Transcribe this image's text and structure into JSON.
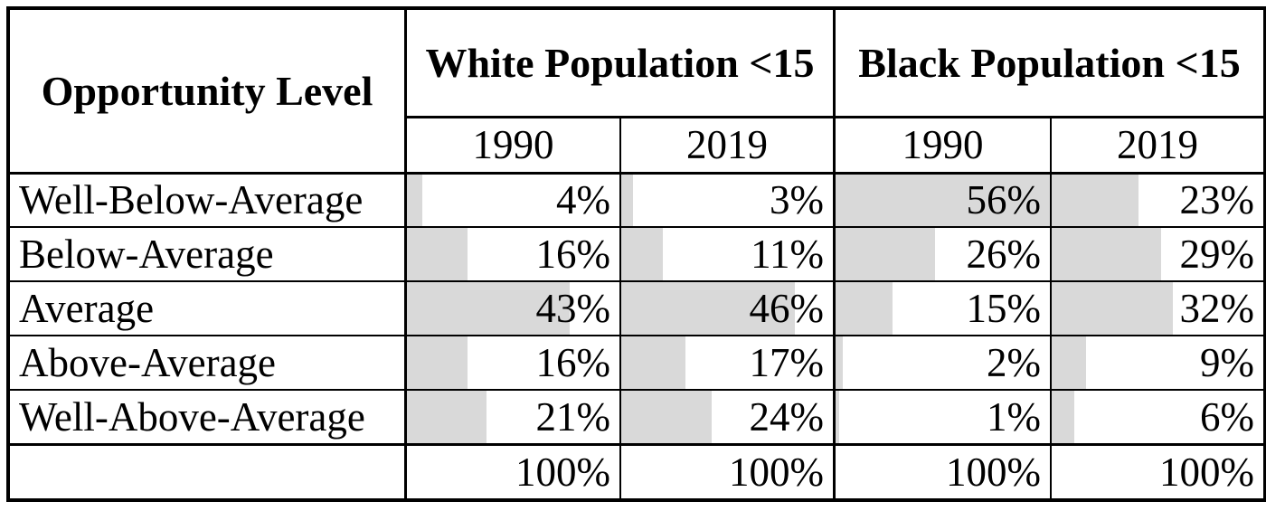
{
  "table": {
    "corner_header": "Opportunity Level",
    "groups": [
      {
        "label": "White Population <15",
        "years": [
          "1990",
          "2019"
        ]
      },
      {
        "label": "Black Population <15",
        "years": [
          "1990",
          "2019"
        ]
      }
    ],
    "bar_scale_max": 56,
    "rows": [
      {
        "label": "Well-Below-Average",
        "values": [
          4,
          3,
          56,
          23
        ],
        "display": [
          "4%",
          "3%",
          "56%",
          "23%"
        ]
      },
      {
        "label": "Below-Average",
        "values": [
          16,
          11,
          26,
          29
        ],
        "display": [
          "16%",
          "11%",
          "26%",
          "29%"
        ]
      },
      {
        "label": "Average",
        "values": [
          43,
          46,
          15,
          32
        ],
        "display": [
          "43%",
          "46%",
          "15%",
          "32%"
        ]
      },
      {
        "label": "Above-Average",
        "values": [
          16,
          17,
          2,
          9
        ],
        "display": [
          "16%",
          "17%",
          "2%",
          "9%"
        ]
      },
      {
        "label": "Well-Above-Average",
        "values": [
          21,
          24,
          1,
          6
        ],
        "display": [
          "21%",
          "24%",
          "1%",
          "6%"
        ]
      }
    ],
    "total_row": {
      "label": "",
      "display": [
        "100%",
        "100%",
        "100%",
        "100%"
      ]
    },
    "colors": {
      "bar": "#d9d9d9",
      "border": "#000000",
      "text": "#000000",
      "background": "#ffffff"
    }
  },
  "chart_data": {
    "type": "table",
    "row_header": "Opportunity Level",
    "categories": [
      "Well-Below-Average",
      "Below-Average",
      "Average",
      "Above-Average",
      "Well-Above-Average"
    ],
    "column_groups": [
      "White Population <15",
      "Black Population <15"
    ],
    "columns": [
      "White Population <15 1990",
      "White Population <15 2019",
      "Black Population <15 1990",
      "Black Population <15 2019"
    ],
    "series": [
      {
        "name": "White Population <15 1990",
        "values": [
          4,
          16,
          43,
          16,
          21
        ],
        "total": 100
      },
      {
        "name": "White Population <15 2019",
        "values": [
          3,
          11,
          46,
          17,
          24
        ],
        "total": 100
      },
      {
        "name": "Black Population <15 1990",
        "values": [
          56,
          26,
          15,
          2,
          1
        ],
        "total": 100
      },
      {
        "name": "Black Population <15 2019",
        "values": [
          23,
          29,
          32,
          9,
          6
        ],
        "total": 100
      }
    ],
    "units": "percent",
    "bar_scale_max": 56,
    "bar_color": "#d9d9d9",
    "legend": "none",
    "grid": "full table borders"
  }
}
